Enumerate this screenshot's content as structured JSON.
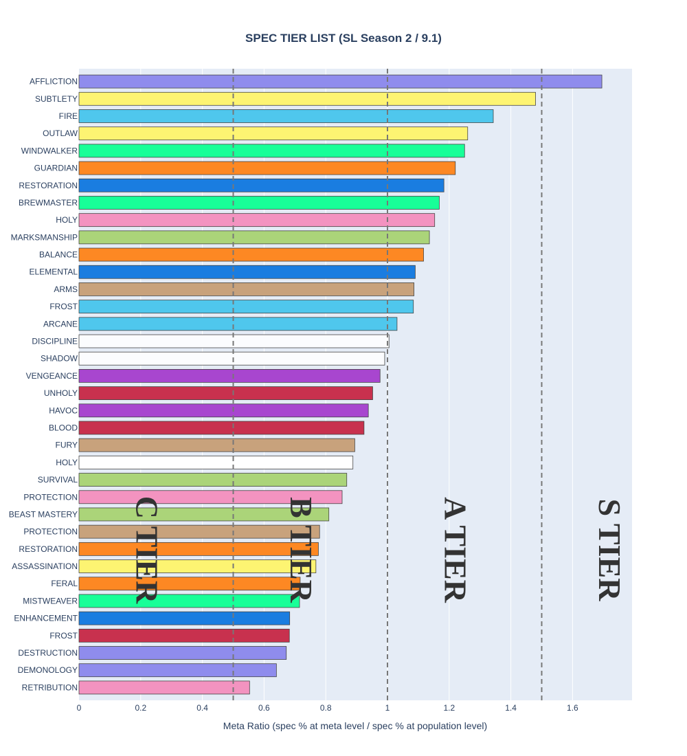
{
  "chart_data": {
    "type": "bar",
    "orientation": "horizontal",
    "title": "SPEC TIER LIST (SL Season 2 / 9.1)",
    "xlabel": "Meta Ratio (spec % at meta level / spec % at population level)",
    "ylabel": "",
    "xlim": [
      0,
      1.78
    ],
    "xticks": [
      0,
      0.2,
      0.4,
      0.6,
      0.8,
      1,
      1.2,
      1.4,
      1.6
    ],
    "xtick_labels": [
      "0",
      "0.2",
      "0.4",
      "0.6",
      "0.8",
      "1",
      "1.2",
      "1.4",
      "1.6"
    ],
    "grid": true,
    "background": "#e5ecf6",
    "tier_lines": [
      0.5,
      1.0,
      1.5
    ],
    "tier_labels": [
      {
        "text": "C TIER",
        "x": 0.22
      },
      {
        "text": "B TIER",
        "x": 0.72
      },
      {
        "text": "A TIER",
        "x": 1.22
      },
      {
        "text": "S TIER",
        "x": 1.72
      }
    ],
    "bars": [
      {
        "label": "AFFLICTION",
        "value": 1.695,
        "color": "#8f8ced"
      },
      {
        "label": "SUBTLETY",
        "value": 1.48,
        "color": "#fdf472"
      },
      {
        "label": "FIRE",
        "value": 1.343,
        "color": "#4fc7ed"
      },
      {
        "label": "OUTLAW",
        "value": 1.26,
        "color": "#fdf472"
      },
      {
        "label": "WINDWALKER",
        "value": 1.25,
        "color": "#18ff98"
      },
      {
        "label": "GUARDIAN",
        "value": 1.22,
        "color": "#fd8823"
      },
      {
        "label": "RESTORATION",
        "value": 1.183,
        "color": "#1a7de0"
      },
      {
        "label": "BREWMASTER",
        "value": 1.168,
        "color": "#18ff98"
      },
      {
        "label": "HOLY",
        "value": 1.153,
        "color": "#f393c0"
      },
      {
        "label": "MARKSMANSHIP",
        "value": 1.136,
        "color": "#abd479"
      },
      {
        "label": "BALANCE",
        "value": 1.117,
        "color": "#fd8823"
      },
      {
        "label": "ELEMENTAL",
        "value": 1.09,
        "color": "#1a7de0"
      },
      {
        "label": "ARMS",
        "value": 1.086,
        "color": "#c8a27c"
      },
      {
        "label": "FROST",
        "value": 1.084,
        "color": "#4fc7ed"
      },
      {
        "label": "ARCANE",
        "value": 1.031,
        "color": "#4fc7ed"
      },
      {
        "label": "DISCIPLINE",
        "value": 1.005,
        "color": "#fbfcfe"
      },
      {
        "label": "SHADOW",
        "value": 0.991,
        "color": "#fbfcfe"
      },
      {
        "label": "VENGEANCE",
        "value": 0.976,
        "color": "#a846cf"
      },
      {
        "label": "UNHOLY",
        "value": 0.952,
        "color": "#c8314e"
      },
      {
        "label": "HAVOC",
        "value": 0.938,
        "color": "#a846cf"
      },
      {
        "label": "BLOOD",
        "value": 0.924,
        "color": "#c8314e"
      },
      {
        "label": "FURY",
        "value": 0.894,
        "color": "#c8a27c"
      },
      {
        "label": "HOLY",
        "value": 0.888,
        "color": "#ffffff"
      },
      {
        "label": "SURVIVAL",
        "value": 0.868,
        "color": "#abd479"
      },
      {
        "label": "PROTECTION",
        "value": 0.853,
        "color": "#f393c0"
      },
      {
        "label": "BEAST MASTERY",
        "value": 0.81,
        "color": "#abd479"
      },
      {
        "label": "PROTECTION",
        "value": 0.78,
        "color": "#c8a27c"
      },
      {
        "label": "RESTORATION",
        "value": 0.776,
        "color": "#fd8823"
      },
      {
        "label": "ASSASSINATION",
        "value": 0.768,
        "color": "#fdf472"
      },
      {
        "label": "FERAL",
        "value": 0.717,
        "color": "#fd8823"
      },
      {
        "label": "MISTWEAVER",
        "value": 0.715,
        "color": "#18ff98"
      },
      {
        "label": "ENHANCEMENT",
        "value": 0.683,
        "color": "#1a7de0"
      },
      {
        "label": "FROST",
        "value": 0.682,
        "color": "#c8314e"
      },
      {
        "label": "DESTRUCTION",
        "value": 0.672,
        "color": "#8f8ced"
      },
      {
        "label": "DEMONOLOGY",
        "value": 0.64,
        "color": "#8f8ced"
      },
      {
        "label": "RETRIBUTION",
        "value": 0.553,
        "color": "#f393c0"
      }
    ]
  }
}
